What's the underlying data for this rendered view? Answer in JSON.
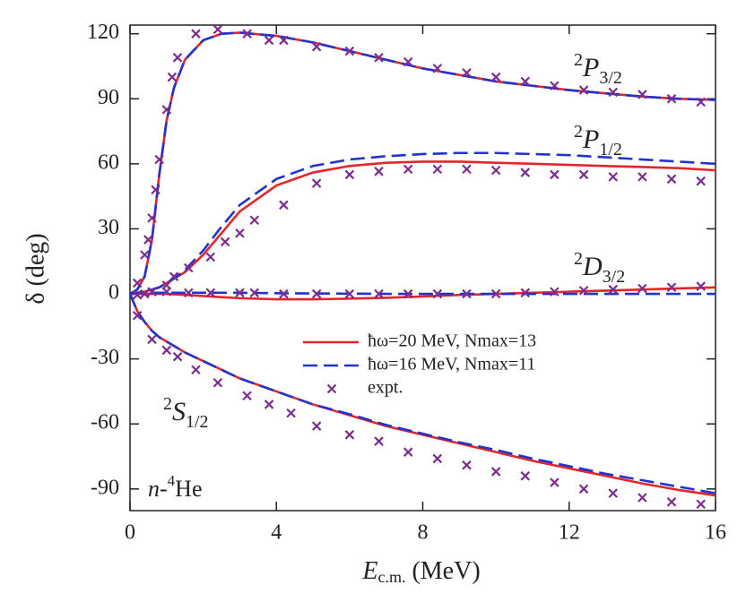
{
  "chart_data": {
    "type": "line",
    "x_label": {
      "main": "E",
      "sub": "c.m.",
      "rest": " (MeV)"
    },
    "y_label": "δ (deg)",
    "system_label": {
      "main": "n-",
      "sup": "4",
      "rest": "He"
    },
    "xlim": [
      0,
      16
    ],
    "ylim": [
      -100,
      124
    ],
    "xticks": [
      0,
      4,
      8,
      12,
      16
    ],
    "yticks": [
      -90,
      -60,
      -30,
      0,
      30,
      60,
      90,
      120
    ],
    "wave_labels": [
      {
        "sup": "2",
        "main": "P",
        "sub": "3/2"
      },
      {
        "sup": "2",
        "main": "P",
        "sub": "1/2"
      },
      {
        "sup": "2",
        "main": "D",
        "sub": "3/2"
      },
      {
        "sup": "2",
        "main": "S",
        "sub": "1/2"
      }
    ],
    "x": [
      0,
      0.2,
      0.4,
      0.6,
      0.8,
      1,
      1.2,
      1.5,
      2,
      2.5,
      3,
      4,
      5,
      6,
      7,
      8,
      9,
      10,
      11,
      12,
      13,
      14,
      15,
      16
    ],
    "series": [
      {
        "name": "ħω=20 MeV, Nmax=13",
        "color": "#e3262b",
        "style": "solid",
        "curves": [
          {
            "values": [
              0,
              2,
              8,
              25,
              55,
              80,
              95,
              108,
              117,
              120,
              120.5,
              119,
              116,
              112,
              108,
              104,
              101,
              98,
              96,
              94,
              92.5,
              91,
              90,
              89.5
            ]
          },
          {
            "values": [
              0,
              0.5,
              1,
              2,
              3,
              5,
              7,
              10,
              18,
              28,
              38,
              50,
              56,
              59,
              60.5,
              61,
              61,
              60.5,
              60,
              59.5,
              59,
              58.5,
              58,
              57
            ]
          },
          {
            "values": [
              0,
              0,
              0,
              0,
              0,
              0,
              -0.2,
              -0.5,
              -1,
              -1.5,
              -2,
              -2.5,
              -2.5,
              -2.2,
              -1.8,
              -1.2,
              -0.5,
              0,
              0.5,
              1,
              1.5,
              2,
              2.5,
              3
            ]
          },
          {
            "values": [
              0,
              -8,
              -13,
              -17,
              -20,
              -22,
              -24,
              -27,
              -31,
              -35,
              -39,
              -45,
              -51,
              -56,
              -61,
              -65,
              -69,
              -73,
              -77,
              -80.5,
              -84,
              -87.5,
              -90.5,
              -93
            ]
          }
        ]
      },
      {
        "name": "ħω=16 MeV, Nmax=11",
        "color": "#2233cc",
        "style": "dashed",
        "curves": [
          {
            "values": [
              0,
              2,
              8,
              25,
              55,
              80,
              95,
              108,
              117,
              120,
              120.5,
              119,
              116,
              112,
              108,
              104,
              101,
              98,
              96,
              94,
              92.5,
              91,
              90,
              89.5
            ]
          },
          {
            "values": [
              0,
              0.5,
              1,
              2,
              3,
              5,
              7,
              11,
              20,
              31,
              41,
              53,
              59,
              62,
              63.5,
              64.5,
              65,
              65,
              64.5,
              64,
              63,
              62,
              61,
              60
            ]
          },
          {
            "values": [
              0,
              0.3,
              0.5,
              0.5,
              0.5,
              0.5,
              0.5,
              0.5,
              0.5,
              0.5,
              0.5,
              0.3,
              0.2,
              0.1,
              0,
              0,
              0,
              0,
              0,
              0,
              0,
              0,
              0,
              0
            ]
          },
          {
            "values": [
              0,
              -8,
              -13,
              -17,
              -20,
              -22,
              -24,
              -27,
              -31,
              -35,
              -39,
              -45,
              -51,
              -55.5,
              -60.5,
              -64.5,
              -68.5,
              -72,
              -76,
              -79.5,
              -83,
              -86,
              -89,
              -92
            ]
          }
        ]
      },
      {
        "name": "expt.",
        "color": "#7b2e8e",
        "style": "cross",
        "curves": [
          {
            "x": [
              0.2,
              0.4,
              0.5,
              0.6,
              0.7,
              0.8,
              1.0,
              1.15,
              1.3,
              1.8,
              2.4,
              3.2,
              3.8,
              4.2,
              5.1,
              6,
              6.8,
              7.6,
              8.4,
              9.2,
              10,
              10.8,
              11.6,
              12.4,
              13.2,
              14,
              14.8,
              15.6
            ],
            "values": [
              5,
              18,
              25,
              35,
              48,
              62,
              85,
              100,
              109,
              120,
              122,
              120,
              117,
              117,
              114,
              112,
              109,
              107,
              104,
              102,
              100,
              98,
              96,
              94,
              93,
              92,
              90,
              88.5
            ]
          },
          {
            "x": [
              0.6,
              1,
              1.2,
              1.6,
              2.2,
              2.6,
              3.0,
              3.4,
              4.2,
              5.1,
              6,
              6.8,
              7.6,
              8.4,
              9.2,
              10,
              10.8,
              11.6,
              12.4,
              13.2,
              14,
              14.8,
              15.6
            ],
            "values": [
              1,
              4,
              8,
              12,
              17,
              24,
              28,
              34,
              41,
              51,
              55,
              56.5,
              57.5,
              57.5,
              57.5,
              57,
              56,
              55,
              55,
              54,
              54,
              53,
              52
            ]
          },
          {
            "x": [
              0.2,
              0.4,
              0.6,
              1,
              1.6,
              2.2,
              3,
              3.4,
              4.2,
              5.1,
              6,
              6.8,
              7.6,
              8.4,
              9.2,
              10,
              10.8,
              11.6,
              12.4,
              13.2,
              14,
              14.8,
              15.6
            ],
            "values": [
              -0.5,
              0,
              1,
              1,
              0.5,
              0.5,
              0.5,
              0.5,
              0,
              0,
              0,
              0,
              0,
              0,
              0,
              0,
              0.5,
              1,
              1.5,
              2,
              2.5,
              3,
              3.5
            ]
          },
          {
            "x": [
              0.2,
              0.6,
              1,
              1.3,
              1.8,
              2.4,
              3.2,
              3.8,
              4.4,
              5.1,
              6,
              6.8,
              7.6,
              8.4,
              9.2,
              10,
              10.8,
              11.6,
              12.4,
              13.2,
              14,
              14.8,
              15.6
            ],
            "values": [
              -10,
              -21,
              -26,
              -29,
              -35,
              -41,
              -47,
              -51,
              -55,
              -61,
              -65,
              -68,
              -73,
              -76,
              -79,
              -82,
              -84,
              -87,
              -90,
              -92,
              -94,
              -96,
              -97
            ]
          }
        ]
      }
    ]
  }
}
